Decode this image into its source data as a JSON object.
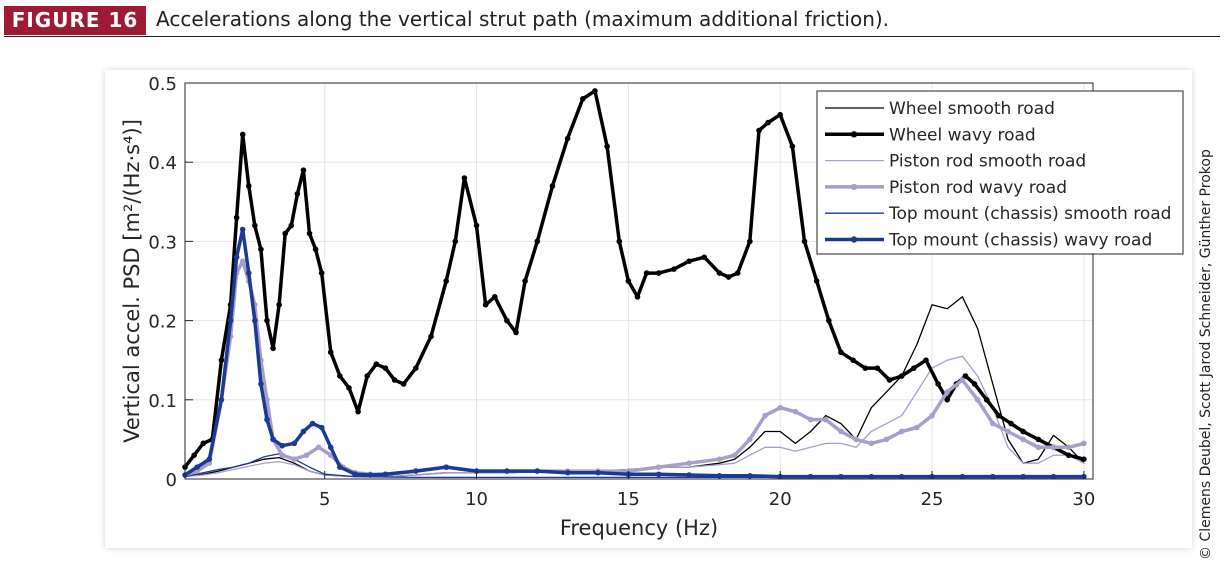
{
  "figure": {
    "badge": "FIGURE 16",
    "caption": "Accelerations along the vertical strut path (maximum additional friction).",
    "credit": "© Clemens Deubel, Scott Jarod Schneider, Günther Prokop",
    "badge_color": "#9e1b34"
  },
  "chart_data": {
    "type": "line",
    "xlabel": "Frequency (Hz)",
    "ylabel": "Vertical accel. PSD [m²/(Hz·s⁴)]",
    "xlim": [
      0.4,
      30.3
    ],
    "ylim": [
      0,
      0.5
    ],
    "xticks": [
      5,
      10,
      15,
      20,
      25,
      30
    ],
    "yticks": [
      0,
      0.1,
      0.2,
      0.3,
      0.4,
      0.5
    ],
    "xtick_labels": [
      "5",
      "10",
      "15",
      "20",
      "25",
      "30"
    ],
    "ytick_labels": [
      "0",
      "0.1",
      "0.2",
      "0.3",
      "0.4",
      "0.5"
    ],
    "grid": true,
    "legend_position": "top-right",
    "series": [
      {
        "name": "Wheel smooth road",
        "color": "#000000",
        "width": 1.3,
        "markers": false,
        "x": [
          0.4,
          1,
          1.5,
          2,
          2.5,
          3,
          3.5,
          4,
          4.5,
          5,
          5.5,
          6,
          7,
          8,
          9,
          10,
          11,
          12,
          13,
          14,
          15,
          16,
          17,
          18,
          18.5,
          19,
          19.5,
          20,
          20.5,
          21,
          21.5,
          22,
          22.5,
          23,
          23.5,
          24,
          24.5,
          25,
          25.5,
          26,
          26.5,
          27,
          27.5,
          28,
          28.5,
          29,
          29.5,
          30
        ],
        "y": [
          0.003,
          0.006,
          0.01,
          0.015,
          0.02,
          0.025,
          0.027,
          0.02,
          0.01,
          0.005,
          0.004,
          0.003,
          0.003,
          0.005,
          0.008,
          0.008,
          0.008,
          0.009,
          0.01,
          0.01,
          0.012,
          0.015,
          0.015,
          0.02,
          0.025,
          0.04,
          0.06,
          0.06,
          0.045,
          0.06,
          0.08,
          0.07,
          0.05,
          0.09,
          0.11,
          0.13,
          0.17,
          0.22,
          0.215,
          0.23,
          0.19,
          0.12,
          0.05,
          0.02,
          0.025,
          0.055,
          0.04,
          0.02
        ]
      },
      {
        "name": "Wheel wavy road",
        "color": "#000000",
        "width": 3.5,
        "markers": true,
        "x": [
          0.4,
          0.7,
          1,
          1.3,
          1.6,
          1.9,
          2.1,
          2.3,
          2.5,
          2.7,
          2.9,
          3.1,
          3.3,
          3.5,
          3.7,
          3.9,
          4.1,
          4.3,
          4.5,
          4.7,
          4.9,
          5.2,
          5.5,
          5.8,
          6.1,
          6.4,
          6.7,
          7,
          7.3,
          7.6,
          8,
          8.5,
          9,
          9.3,
          9.6,
          10,
          10.3,
          10.6,
          11,
          11.3,
          11.6,
          12,
          12.5,
          13,
          13.5,
          13.9,
          14.3,
          14.7,
          15,
          15.3,
          15.6,
          16,
          16.5,
          17,
          17.5,
          18,
          18.3,
          18.6,
          19,
          19.3,
          19.6,
          20,
          20.4,
          20.8,
          21.2,
          21.6,
          22,
          22.4,
          22.8,
          23.2,
          23.6,
          24,
          24.4,
          24.8,
          25.2,
          25.5,
          25.8,
          26.1,
          26.4,
          26.8,
          27.2,
          27.6,
          28,
          28.5,
          29,
          29.5,
          30
        ],
        "y": [
          0.015,
          0.03,
          0.045,
          0.05,
          0.15,
          0.22,
          0.33,
          0.435,
          0.37,
          0.32,
          0.29,
          0.2,
          0.165,
          0.22,
          0.31,
          0.32,
          0.36,
          0.39,
          0.31,
          0.29,
          0.26,
          0.16,
          0.13,
          0.115,
          0.085,
          0.13,
          0.145,
          0.14,
          0.125,
          0.12,
          0.14,
          0.18,
          0.25,
          0.3,
          0.38,
          0.32,
          0.22,
          0.23,
          0.2,
          0.185,
          0.25,
          0.3,
          0.37,
          0.43,
          0.48,
          0.49,
          0.42,
          0.3,
          0.25,
          0.23,
          0.26,
          0.26,
          0.265,
          0.275,
          0.28,
          0.26,
          0.255,
          0.26,
          0.3,
          0.44,
          0.45,
          0.46,
          0.42,
          0.3,
          0.25,
          0.2,
          0.16,
          0.15,
          0.14,
          0.14,
          0.125,
          0.13,
          0.14,
          0.15,
          0.12,
          0.1,
          0.12,
          0.13,
          0.12,
          0.1,
          0.08,
          0.07,
          0.06,
          0.05,
          0.04,
          0.03,
          0.025
        ]
      },
      {
        "name": "Piston rod smooth road",
        "color": "#a79fc9",
        "width": 1.3,
        "markers": false,
        "x": [
          0.4,
          1,
          1.5,
          2,
          2.5,
          3,
          3.5,
          4,
          4.5,
          5,
          5.5,
          6,
          7,
          8,
          9,
          10,
          11,
          12,
          13,
          14,
          15,
          16,
          17,
          18,
          18.5,
          19,
          19.5,
          20,
          20.5,
          21,
          21.5,
          22,
          22.5,
          23,
          23.5,
          24,
          24.5,
          25,
          25.5,
          26,
          26.5,
          27,
          27.5,
          28,
          28.5,
          29,
          29.5,
          30
        ],
        "y": [
          0.003,
          0.005,
          0.008,
          0.012,
          0.016,
          0.02,
          0.022,
          0.018,
          0.01,
          0.005,
          0.004,
          0.003,
          0.003,
          0.005,
          0.008,
          0.008,
          0.008,
          0.009,
          0.01,
          0.01,
          0.012,
          0.015,
          0.015,
          0.018,
          0.02,
          0.03,
          0.04,
          0.04,
          0.035,
          0.04,
          0.045,
          0.045,
          0.04,
          0.06,
          0.07,
          0.08,
          0.11,
          0.14,
          0.15,
          0.155,
          0.13,
          0.09,
          0.04,
          0.02,
          0.02,
          0.03,
          0.03,
          0.02
        ]
      },
      {
        "name": "Piston rod wavy road",
        "color": "#a79fc9",
        "width": 3.5,
        "markers": true,
        "x": [
          0.4,
          0.8,
          1.2,
          1.6,
          1.9,
          2.1,
          2.3,
          2.5,
          2.7,
          2.9,
          3.1,
          3.3,
          3.6,
          4,
          4.4,
          4.8,
          5.2,
          5.6,
          6,
          6.5,
          7,
          8,
          9,
          10,
          11,
          12,
          13,
          14,
          15,
          16,
          17,
          18,
          18.5,
          19,
          19.5,
          20,
          20.5,
          21,
          21.5,
          22,
          22.5,
          23,
          23.5,
          24,
          24.5,
          25,
          25.5,
          26,
          26.5,
          27,
          27.5,
          28,
          28.5,
          29,
          29.5,
          30
        ],
        "y": [
          0.005,
          0.01,
          0.02,
          0.1,
          0.18,
          0.26,
          0.275,
          0.25,
          0.22,
          0.15,
          0.1,
          0.05,
          0.03,
          0.025,
          0.03,
          0.04,
          0.03,
          0.015,
          0.008,
          0.006,
          0.006,
          0.01,
          0.015,
          0.01,
          0.01,
          0.01,
          0.01,
          0.01,
          0.01,
          0.015,
          0.02,
          0.025,
          0.03,
          0.05,
          0.08,
          0.09,
          0.085,
          0.075,
          0.075,
          0.06,
          0.05,
          0.045,
          0.05,
          0.06,
          0.065,
          0.08,
          0.11,
          0.125,
          0.1,
          0.07,
          0.06,
          0.05,
          0.04,
          0.04,
          0.04,
          0.045
        ]
      },
      {
        "name": "Top mount (chassis) smooth road",
        "color": "#1a3a96",
        "width": 1.3,
        "markers": false,
        "x": [
          0.4,
          1,
          1.5,
          2,
          2.5,
          3,
          3.5,
          4,
          4.5,
          5,
          6,
          8,
          10,
          12,
          14,
          16,
          18,
          20,
          22,
          24,
          26,
          28,
          30
        ],
        "y": [
          0.003,
          0.008,
          0.012,
          0.015,
          0.02,
          0.028,
          0.032,
          0.025,
          0.015,
          0.006,
          0.003,
          0.002,
          0.002,
          0.002,
          0.002,
          0.002,
          0.002,
          0.002,
          0.002,
          0.002,
          0.002,
          0.002,
          0.002
        ]
      },
      {
        "name": "Top mount (chassis) wavy road",
        "color": "#1a3a96",
        "width": 3.5,
        "markers": true,
        "x": [
          0.4,
          0.8,
          1.2,
          1.6,
          1.9,
          2.1,
          2.3,
          2.5,
          2.7,
          2.9,
          3.1,
          3.3,
          3.6,
          4,
          4.3,
          4.6,
          4.9,
          5.2,
          5.5,
          6,
          6.5,
          7,
          8,
          9,
          10,
          11,
          12,
          13,
          14,
          15,
          16,
          17,
          18,
          19,
          20,
          21,
          22,
          23,
          24,
          25,
          26,
          27,
          28,
          29,
          30
        ],
        "y": [
          0.005,
          0.015,
          0.025,
          0.1,
          0.2,
          0.28,
          0.315,
          0.26,
          0.2,
          0.12,
          0.075,
          0.05,
          0.042,
          0.045,
          0.06,
          0.07,
          0.065,
          0.04,
          0.015,
          0.006,
          0.005,
          0.006,
          0.01,
          0.015,
          0.01,
          0.01,
          0.01,
          0.008,
          0.008,
          0.006,
          0.006,
          0.005,
          0.004,
          0.004,
          0.003,
          0.003,
          0.003,
          0.003,
          0.003,
          0.003,
          0.003,
          0.003,
          0.003,
          0.003,
          0.003
        ]
      }
    ]
  }
}
